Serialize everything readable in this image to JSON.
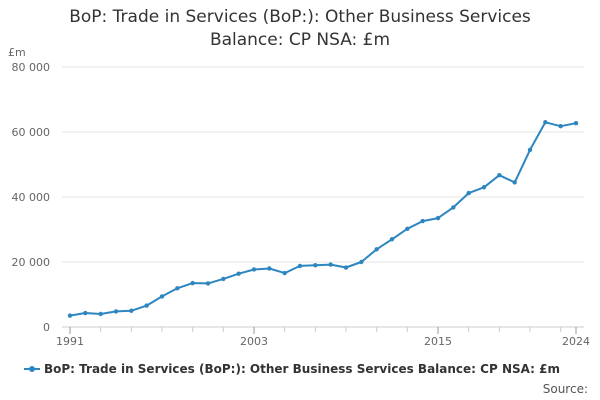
{
  "title_line1": "BoP: Trade in Services (BoP:): Other Business Services",
  "title_line2": "Balance: CP NSA: £m",
  "source_label": "Source:",
  "colors": {
    "series": "#2E86C1",
    "grid": "#e6e6e6",
    "axis": "#cccccc",
    "tick_text": "#666666"
  },
  "chart_data": {
    "type": "line",
    "title": "BoP: Trade in Services (BoP:): Other Business Services Balance: CP NSA: £m",
    "ylabel": "£m",
    "xlabel": "",
    "ylim": [
      0,
      80000
    ],
    "xlim": [
      1991,
      2024
    ],
    "y_ticks": [
      0,
      20000,
      40000,
      60000,
      80000
    ],
    "y_tick_labels": [
      "0",
      "20 000",
      "40 000",
      "60 000",
      "80 000"
    ],
    "x_tick_labels": [
      "1991",
      "2003",
      "2015",
      "2024"
    ],
    "x_minor_ticks": [
      1991,
      1993,
      1995,
      1997,
      1999,
      2001,
      2003,
      2005,
      2007,
      2009,
      2011,
      2013,
      2015,
      2017,
      2019,
      2021,
      2023,
      2024
    ],
    "grid": true,
    "legend_position": "bottom",
    "series": [
      {
        "name": "BoP: Trade in Services (BoP:): Other Business Services Balance: CP NSA: £m",
        "x": [
          1991,
          1992,
          1993,
          1994,
          1995,
          1996,
          1997,
          1998,
          1999,
          2000,
          2001,
          2002,
          2003,
          2004,
          2005,
          2006,
          2007,
          2008,
          2009,
          2010,
          2011,
          2012,
          2013,
          2014,
          2015,
          2016,
          2017,
          2018,
          2019,
          2020,
          2021,
          2022,
          2023,
          2024
        ],
        "values": [
          3500,
          4300,
          4000,
          4800,
          5000,
          6600,
          9400,
          11900,
          13500,
          13400,
          14800,
          16400,
          17700,
          18000,
          16600,
          18800,
          19000,
          19200,
          18300,
          20000,
          23900,
          27000,
          30200,
          32600,
          33500,
          36800,
          41200,
          43000,
          46700,
          44500,
          54500,
          63000,
          61800,
          62700
        ]
      }
    ]
  }
}
